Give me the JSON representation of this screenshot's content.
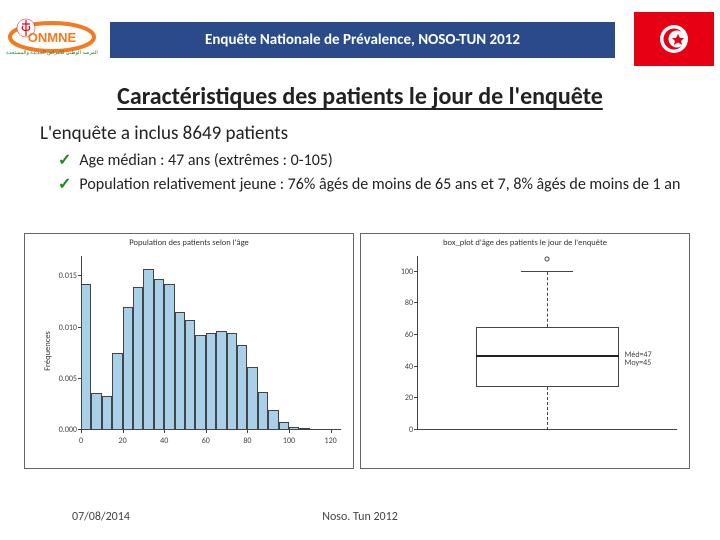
{
  "header": {
    "banner_text": "Enquête Nationale de Prévalence, NOSO-TUN 2012",
    "banner_bg": "#2a4a8a",
    "logo_text_primary": "ONMNE",
    "logo_accent": "#f47a1f"
  },
  "flag": {
    "bg": "#e70013",
    "circle": "#ffffff",
    "inner": "#e70013"
  },
  "title": "Caractéristiques des patients le jour de l'enquête",
  "subtitle": "L'enquête a inclus 8649 patients",
  "bullets": [
    "Age médian : 47 ans (extrêmes : 0-105)",
    "Population relativement jeune : 76%  âgés de moins de 65 ans et 7, 8% âgés de moins de 1 an"
  ],
  "histogram": {
    "type": "histogram",
    "title": "Population des patients selon l'âge",
    "ylabel": "Fréquences",
    "x_ticks": [
      0,
      20,
      40,
      60,
      80,
      100,
      120
    ],
    "y_ticks": [
      0.0,
      0.005,
      0.01,
      0.015
    ],
    "ylim": [
      0,
      0.017
    ],
    "xlim": [
      0,
      125
    ],
    "bin_edges": [
      0,
      5,
      10,
      15,
      20,
      25,
      30,
      35,
      40,
      45,
      50,
      55,
      60,
      65,
      70,
      75,
      80,
      85,
      90,
      95,
      100,
      105,
      110
    ],
    "densities": [
      0.0143,
      0.0036,
      0.0033,
      0.0075,
      0.012,
      0.014,
      0.0157,
      0.0148,
      0.0143,
      0.0115,
      0.0107,
      0.0093,
      0.0095,
      0.0097,
      0.0095,
      0.0083,
      0.0062,
      0.0037,
      0.002,
      0.0008,
      0.0003,
      0.0001
    ],
    "bar_fill": "#a8d0e8",
    "bar_border": "#444444",
    "background": "#ffffff",
    "tick_fontsize": 8
  },
  "boxplot": {
    "type": "boxplot",
    "title": "box_plot d'âge des patients le jour de l'enquête",
    "ylim": [
      0,
      110
    ],
    "y_ticks": [
      0,
      20,
      40,
      60,
      80,
      100
    ],
    "q1": 27,
    "median": 47,
    "q3": 65,
    "whisker_low": 0,
    "whisker_high": 100,
    "outliers": [
      105
    ],
    "annotations": [
      {
        "label": "Méd=47",
        "y": 47
      },
      {
        "label": "Moy=45",
        "y": 42
      }
    ],
    "box_border": "#444444",
    "background": "#ffffff",
    "tick_fontsize": 8
  },
  "footer": {
    "date": "07/08/2014",
    "center": "Noso. Tun 2012"
  }
}
